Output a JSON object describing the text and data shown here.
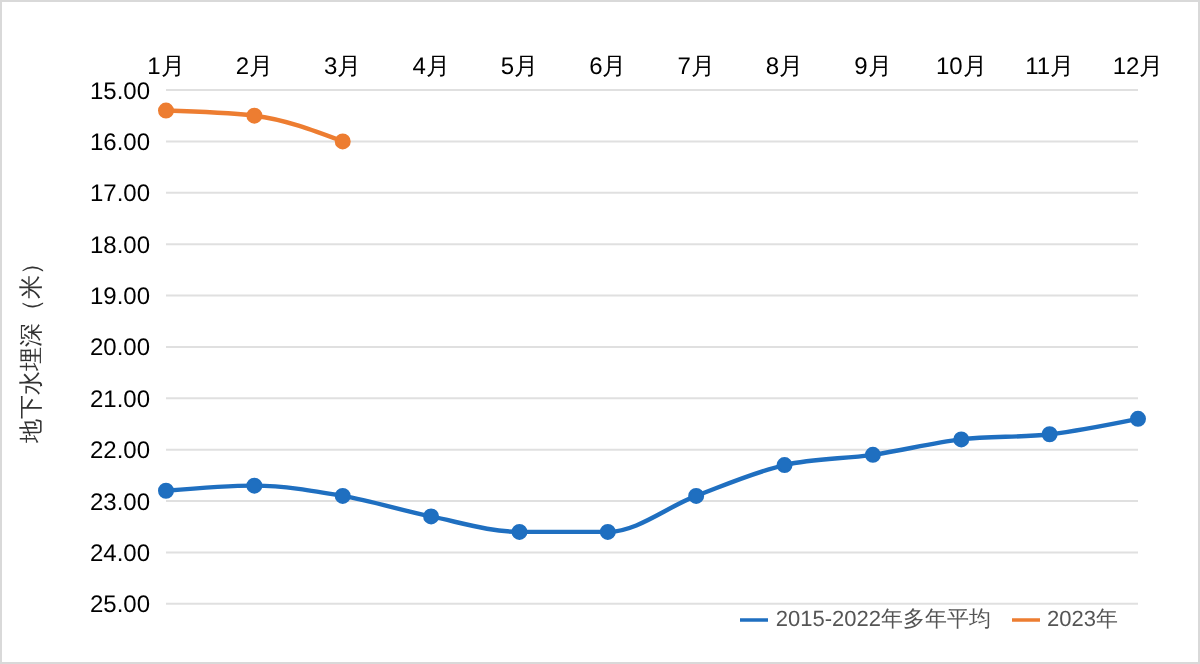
{
  "chart_data": {
    "type": "line",
    "ylabel": "地下水埋深（米）",
    "categories": [
      "1月",
      "2月",
      "3月",
      "4月",
      "5月",
      "6月",
      "7月",
      "8月",
      "9月",
      "10月",
      "11月",
      "12月"
    ],
    "series": [
      {
        "name": "2015-2022年多年平均",
        "color": "#1f6fc0",
        "values": [
          22.8,
          22.7,
          22.9,
          23.3,
          23.6,
          23.6,
          22.9,
          22.3,
          22.1,
          21.8,
          21.7,
          21.4
        ]
      },
      {
        "name": "2023年",
        "color": "#ed7d31",
        "values": [
          15.4,
          15.5,
          16.0,
          null,
          null,
          null,
          null,
          null,
          null,
          null,
          null,
          null
        ]
      }
    ],
    "ylim": [
      25,
      15
    ],
    "yticks": [
      {
        "value": 15,
        "label": "15.00"
      },
      {
        "value": 16,
        "label": "16.00"
      },
      {
        "value": 17,
        "label": "17.00"
      },
      {
        "value": 18,
        "label": "18.00"
      },
      {
        "value": 19,
        "label": "19.00"
      },
      {
        "value": 20,
        "label": "20.00"
      },
      {
        "value": 21,
        "label": "21.00"
      },
      {
        "value": 22,
        "label": "22.00"
      },
      {
        "value": 23,
        "label": "23.00"
      },
      {
        "value": 24,
        "label": "24.00"
      },
      {
        "value": 25,
        "label": "25.00"
      }
    ],
    "grid": "y",
    "legend": "bottom right",
    "marker": "circle",
    "line_style": "solid"
  }
}
